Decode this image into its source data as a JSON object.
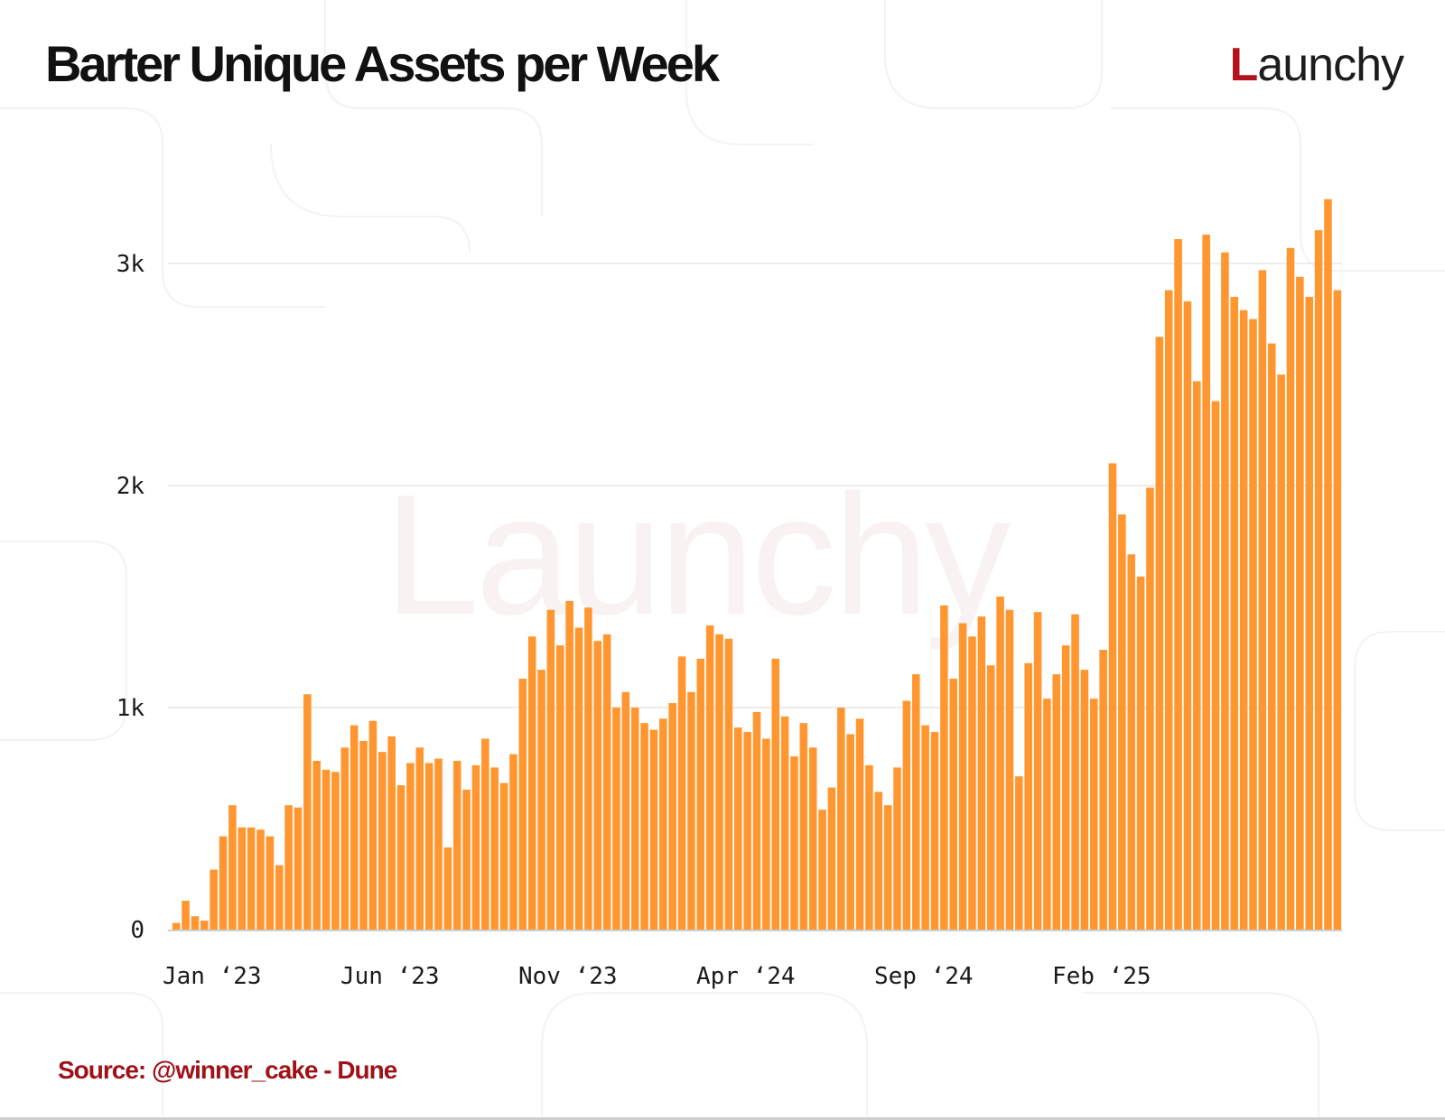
{
  "header": {
    "title": "Barter Unique Assets per Week",
    "logo_first": "L",
    "logo_rest": "aunchy"
  },
  "watermark": "Launchy",
  "footer": {
    "source": "Source: @winner_cake - Dune"
  },
  "colors": {
    "bar": "#ff962f",
    "title": "#111111",
    "source": "#9e1218",
    "logo_accent": "#b3141b"
  },
  "chart_data": {
    "type": "bar",
    "title": "Barter Unique Assets per Week",
    "xlabel": "",
    "ylabel": "",
    "ylim": [
      0,
      3300
    ],
    "grid": true,
    "y_ticks": [
      {
        "value": 0,
        "label": "0"
      },
      {
        "value": 1000,
        "label": "1k"
      },
      {
        "value": 2000,
        "label": "2k"
      },
      {
        "value": 3000,
        "label": "3k"
      }
    ],
    "x_ticks": [
      {
        "index": 0,
        "label": "Jan ‘23"
      },
      {
        "index": 19,
        "label": "Jun ‘23"
      },
      {
        "index": 38,
        "label": "Nov ‘23"
      },
      {
        "index": 57,
        "label": "Apr ‘24"
      },
      {
        "index": 76,
        "label": "Sep ‘24"
      },
      {
        "index": 95,
        "label": "Feb ‘25"
      }
    ],
    "values": [
      30,
      130,
      60,
      40,
      270,
      420,
      560,
      460,
      460,
      450,
      420,
      290,
      560,
      550,
      1060,
      760,
      720,
      710,
      820,
      920,
      850,
      940,
      800,
      870,
      650,
      750,
      820,
      750,
      770,
      370,
      760,
      630,
      740,
      860,
      730,
      660,
      790,
      1130,
      1320,
      1170,
      1440,
      1280,
      1480,
      1360,
      1450,
      1300,
      1330,
      1000,
      1070,
      1000,
      930,
      900,
      950,
      1020,
      1230,
      1070,
      1220,
      1370,
      1330,
      1310,
      910,
      890,
      980,
      860,
      1220,
      960,
      780,
      930,
      820,
      540,
      640,
      1000,
      880,
      950,
      740,
      620,
      560,
      730,
      1030,
      1150,
      920,
      890,
      1460,
      1130,
      1380,
      1320,
      1410,
      1190,
      1500,
      1440,
      690,
      1200,
      1430,
      1040,
      1150,
      1280,
      1420,
      1170,
      1040,
      1260,
      2100,
      1870,
      1690,
      1590,
      1990,
      2670,
      2880,
      3110,
      2830,
      2470,
      3130,
      2380,
      3050,
      2850,
      2790,
      2750,
      2970,
      2640,
      2500,
      3070,
      2940,
      2850,
      3150,
      3290,
      2880
    ]
  }
}
